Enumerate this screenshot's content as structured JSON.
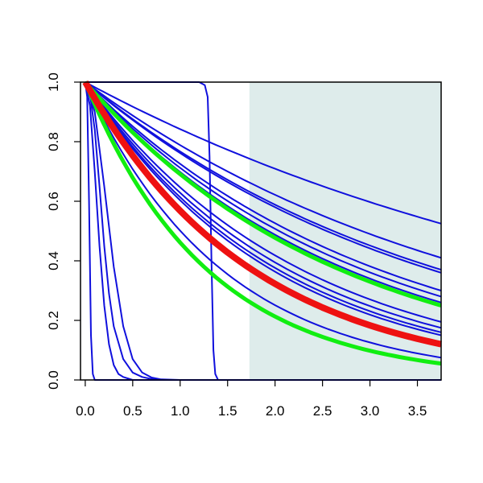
{
  "chart_data": {
    "type": "line",
    "title": "",
    "xlabel": "",
    "ylabel": "",
    "xlim": [
      -0.05,
      3.75
    ],
    "ylim": [
      0,
      1
    ],
    "grid": false,
    "shaded_region_x": [
      1.73,
      3.75
    ],
    "x_ticks": [
      "0.0",
      "0.5",
      "1.0",
      "1.5",
      "2.0",
      "2.5",
      "3.0",
      "3.5"
    ],
    "y_ticks": [
      "0.0",
      "0.2",
      "0.4",
      "0.6",
      "0.8",
      "1.0"
    ],
    "colors": {
      "blue": "#1010dd",
      "red": "#ee1111",
      "green": "#11ee11",
      "shade": "#deeceb"
    },
    "series": [
      {
        "color": "blue",
        "width": 2,
        "x": [
          0,
          3.75
        ],
        "y": [
          1.0,
          0.525
        ]
      },
      {
        "color": "blue",
        "width": 2,
        "x": [
          0,
          3.75
        ],
        "y": [
          1.0,
          0.41
        ]
      },
      {
        "color": "blue",
        "width": 2,
        "x": [
          0,
          3.75
        ],
        "y": [
          1.0,
          0.37
        ]
      },
      {
        "color": "blue",
        "width": 2,
        "x": [
          0,
          3.75
        ],
        "y": [
          1.0,
          0.36
        ]
      },
      {
        "color": "blue",
        "width": 2,
        "x": [
          0,
          3.75
        ],
        "y": [
          1.0,
          0.3
        ]
      },
      {
        "color": "blue",
        "width": 2,
        "x": [
          0,
          3.75
        ],
        "y": [
          1.0,
          0.28
        ]
      },
      {
        "color": "blue",
        "width": 2,
        "x": [
          0,
          3.75
        ],
        "y": [
          1.0,
          0.26
        ]
      },
      {
        "color": "blue",
        "width": 2,
        "x": [
          0,
          3.75
        ],
        "y": [
          1.0,
          0.195
        ]
      },
      {
        "color": "blue",
        "width": 2,
        "x": [
          0,
          3.75
        ],
        "y": [
          1.0,
          0.175
        ]
      },
      {
        "color": "blue",
        "width": 2,
        "x": [
          0,
          3.75
        ],
        "y": [
          1.0,
          0.16
        ]
      },
      {
        "color": "blue",
        "width": 2,
        "x": [
          0,
          3.75
        ],
        "y": [
          1.0,
          0.15
        ]
      },
      {
        "color": "blue",
        "width": 2,
        "x": [
          0,
          3.75
        ],
        "y": [
          1.0,
          0.075
        ]
      },
      {
        "color": "blue",
        "width": 2,
        "x": [
          0,
          0.02,
          0.04,
          0.06,
          0.08,
          0.1
        ],
        "y": [
          1.0,
          0.95,
          0.6,
          0.15,
          0.02,
          0.0
        ]
      },
      {
        "color": "blue",
        "width": 2,
        "x": [
          0,
          0.05,
          0.1,
          0.15,
          0.2,
          0.25,
          0.3,
          0.35,
          0.4,
          0.5,
          0.6,
          0.8
        ],
        "y": [
          1.0,
          0.92,
          0.7,
          0.45,
          0.25,
          0.12,
          0.05,
          0.02,
          0.01,
          0.0,
          0.0,
          0.0
        ]
      },
      {
        "color": "blue",
        "width": 2,
        "x": [
          0,
          0.05,
          0.1,
          0.15,
          0.2,
          0.25,
          0.3,
          0.4,
          0.5,
          0.6,
          0.7,
          0.8
        ],
        "y": [
          1.0,
          0.96,
          0.84,
          0.65,
          0.45,
          0.29,
          0.18,
          0.07,
          0.025,
          0.01,
          0.003,
          0.0
        ]
      },
      {
        "color": "blue",
        "width": 2,
        "x": [
          0,
          0.1,
          0.2,
          0.3,
          0.4,
          0.5,
          0.6,
          0.7,
          0.8,
          1.0
        ],
        "y": [
          1.0,
          0.9,
          0.65,
          0.38,
          0.18,
          0.07,
          0.025,
          0.008,
          0.002,
          0.0
        ]
      },
      {
        "color": "blue",
        "width": 2,
        "x": [
          0,
          1.2,
          1.26,
          1.29,
          1.31,
          1.33,
          1.35,
          1.37,
          1.4,
          1.45
        ],
        "y": [
          1.0,
          1.0,
          0.99,
          0.95,
          0.75,
          0.4,
          0.1,
          0.02,
          0.0,
          0.0
        ]
      },
      {
        "color": "green",
        "width": 5,
        "x": [
          0,
          3.75
        ],
        "y": [
          1.0,
          0.25
        ]
      },
      {
        "color": "green",
        "width": 5,
        "x": [
          0,
          3.75
        ],
        "y": [
          1.0,
          0.055
        ]
      },
      {
        "color": "red",
        "width": 8,
        "x": [
          0,
          3.75
        ],
        "y": [
          1.0,
          0.12
        ]
      }
    ]
  }
}
